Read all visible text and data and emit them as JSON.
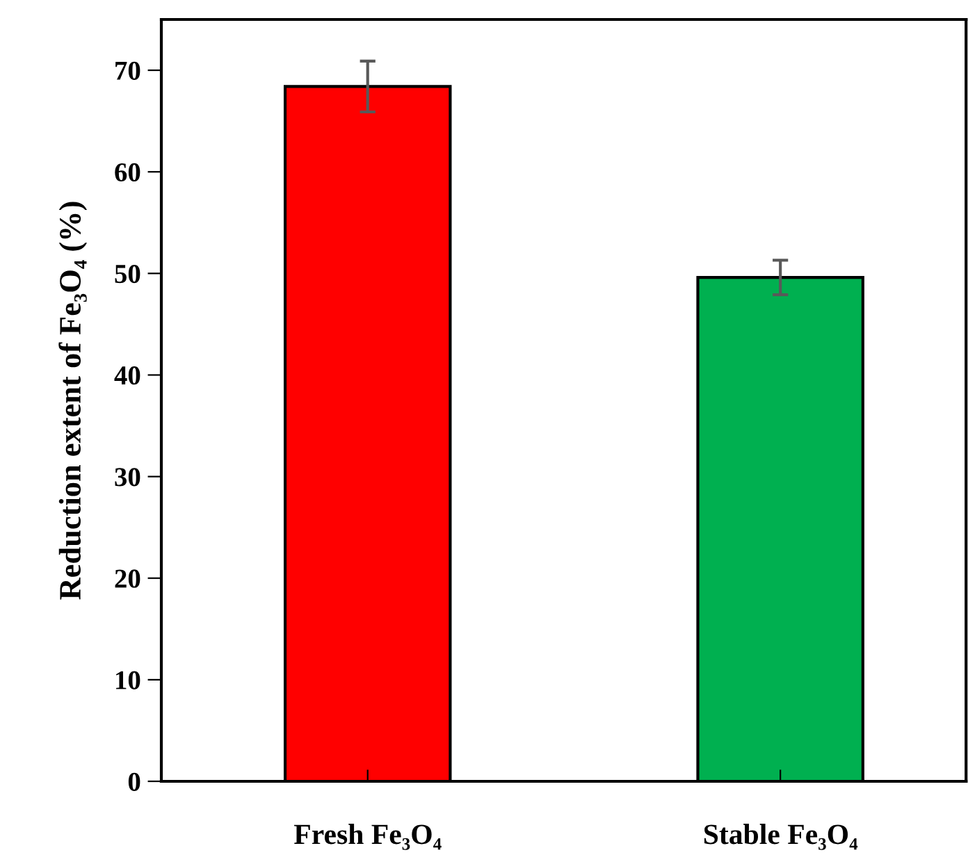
{
  "chart_data": {
    "type": "bar",
    "ylabel": "Reduction extent of Fe₃O₄ (%)",
    "categories": [
      "Fresh Fe₃O₄",
      "Stable Fe₃O₄"
    ],
    "values": [
      68.4,
      49.6
    ],
    "colors": [
      "#ff0000",
      "#00b050"
    ],
    "errors": [
      2.5,
      1.7
    ],
    "ylim": [
      0,
      75
    ],
    "yticks": [
      0,
      10,
      20,
      30,
      40,
      50,
      60,
      70
    ],
    "grid": false
  }
}
